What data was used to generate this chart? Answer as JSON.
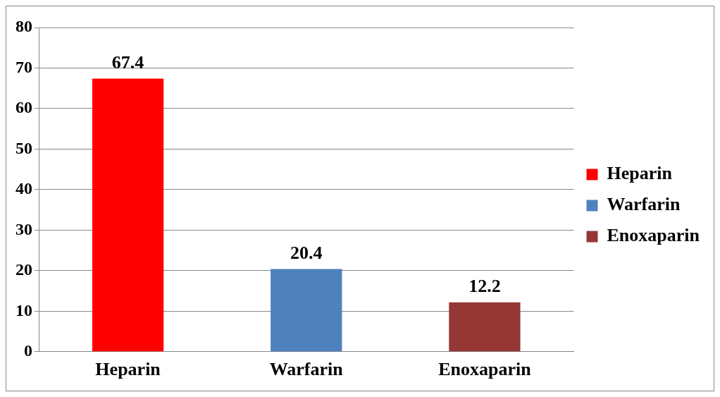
{
  "chart_data": {
    "type": "bar",
    "categories": [
      "Heparin",
      "Warfarin",
      "Enoxaparin"
    ],
    "series": [
      {
        "name": "Heparin",
        "color": "#ff0000",
        "values": [
          67.4,
          null,
          null
        ]
      },
      {
        "name": "Warfarin",
        "color": "#4f81bd",
        "values": [
          null,
          20.4,
          null
        ]
      },
      {
        "name": "Enoxaparin",
        "color": "#953735",
        "values": [
          null,
          null,
          12.2
        ]
      }
    ],
    "ylim": [
      0,
      80
    ],
    "yticks": [
      0,
      10,
      20,
      30,
      40,
      50,
      60,
      70,
      80
    ],
    "grid": "y",
    "legend": "right",
    "data_labels": true
  }
}
